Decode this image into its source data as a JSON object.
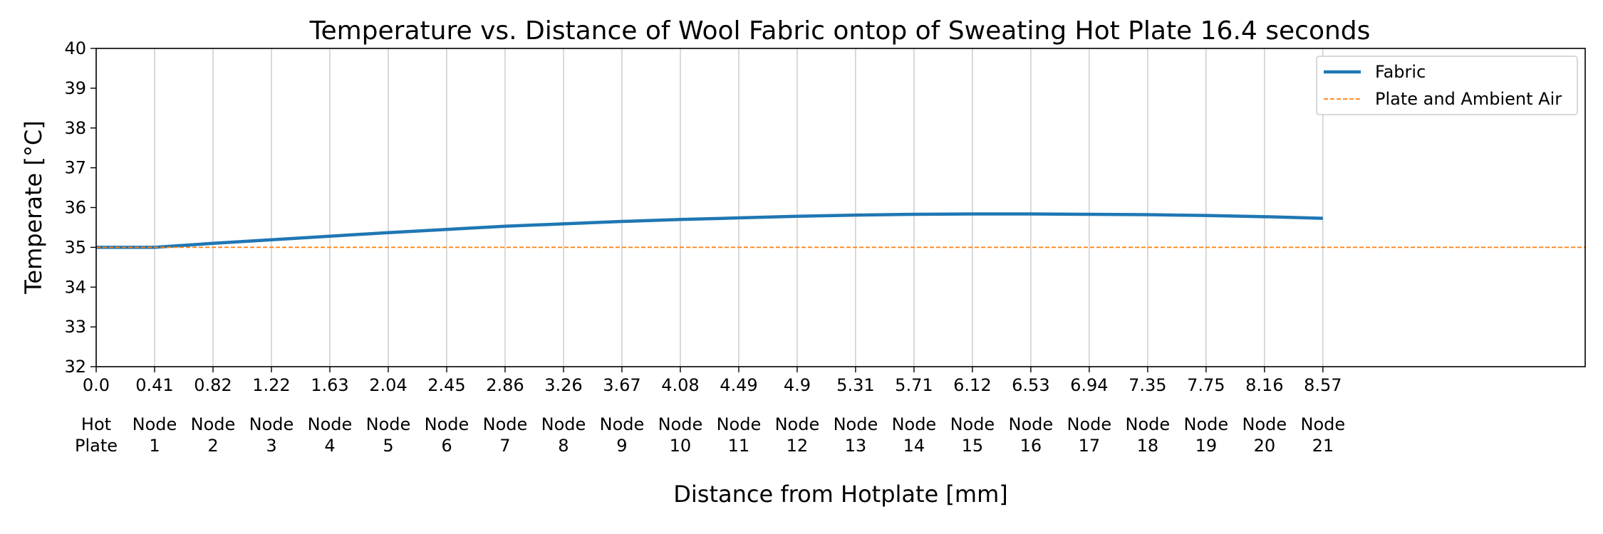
{
  "chart_data": {
    "type": "line",
    "title": "Temperature vs. Distance of Wool Fabric ontop of Sweating Hot Plate 16.4 seconds",
    "xlabel": "Distance from Hotplate [mm]",
    "ylabel": "Temperate [°C]",
    "xlim": [
      0,
      10.4
    ],
    "ylim": [
      32,
      40
    ],
    "yticks": [
      32,
      33,
      34,
      35,
      36,
      37,
      38,
      39,
      40
    ],
    "xticks": [
      0.0,
      0.408,
      0.816,
      1.224,
      1.632,
      2.04,
      2.448,
      2.856,
      3.264,
      3.672,
      4.08,
      4.488,
      4.896,
      5.304,
      5.712,
      6.12,
      6.528,
      6.936,
      7.344,
      7.752,
      8.16,
      8.568
    ],
    "xtick_labels": [
      "0.0",
      "0.41",
      "0.82",
      "1.22",
      "1.63",
      "2.04",
      "2.45",
      "2.86",
      "3.26",
      "3.67",
      "4.08",
      "4.49",
      "4.9",
      "5.31",
      "5.71",
      "6.12",
      "6.53",
      "6.94",
      "7.35",
      "7.75",
      "8.16",
      "8.57"
    ],
    "node_labels": [
      [
        "Hot",
        "Plate"
      ],
      [
        "Node",
        "1"
      ],
      [
        "Node",
        "2"
      ],
      [
        "Node",
        "3"
      ],
      [
        "Node",
        "4"
      ],
      [
        "Node",
        "5"
      ],
      [
        "Node",
        "6"
      ],
      [
        "Node",
        "7"
      ],
      [
        "Node",
        "8"
      ],
      [
        "Node",
        "9"
      ],
      [
        "Node",
        "10"
      ],
      [
        "Node",
        "11"
      ],
      [
        "Node",
        "12"
      ],
      [
        "Node",
        "13"
      ],
      [
        "Node",
        "14"
      ],
      [
        "Node",
        "15"
      ],
      [
        "Node",
        "16"
      ],
      [
        "Node",
        "17"
      ],
      [
        "Node",
        "18"
      ],
      [
        "Node",
        "19"
      ],
      [
        "Node",
        "20"
      ],
      [
        "Node",
        "21"
      ]
    ],
    "grid": "vertical",
    "legend_position": "top-right",
    "series": [
      {
        "name": "Fabric",
        "color": "#1f77b4",
        "style": "solid",
        "x": [
          0.0,
          0.408,
          0.816,
          1.224,
          1.632,
          2.04,
          2.448,
          2.856,
          3.264,
          3.672,
          4.08,
          4.488,
          4.896,
          5.304,
          5.712,
          6.12,
          6.528,
          6.936,
          7.344,
          7.752,
          8.16,
          8.568
        ],
        "y": [
          35.0,
          35.0,
          35.1,
          35.19,
          35.28,
          35.37,
          35.45,
          35.53,
          35.59,
          35.65,
          35.7,
          35.74,
          35.78,
          35.81,
          35.83,
          35.84,
          35.84,
          35.83,
          35.82,
          35.8,
          35.77,
          35.73
        ]
      },
      {
        "name": "Plate and Ambient Air",
        "color": "#ff7f0e",
        "style": "dashed",
        "x": [
          0.0,
          10.4
        ],
        "y": [
          35.0,
          35.0
        ]
      }
    ]
  }
}
